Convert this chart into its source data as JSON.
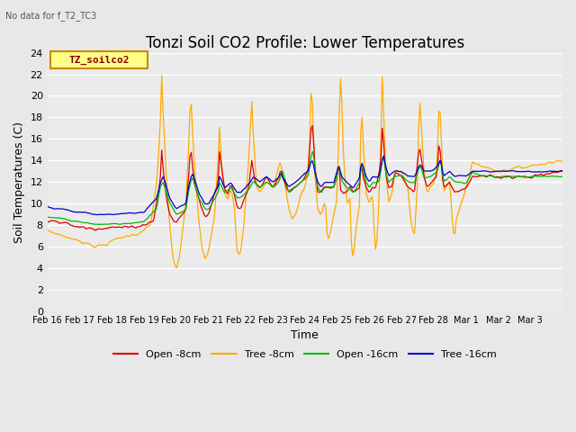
{
  "title": "Tonzi Soil CO2 Profile: Lower Temperatures",
  "subtitle": "No data for f_T2_TC3",
  "ylabel": "Soil Temperatures (C)",
  "xlabel": "Time",
  "legend_label": "TZ_soilco2",
  "ylim": [
    0,
    24
  ],
  "yticks": [
    0,
    2,
    4,
    6,
    8,
    10,
    12,
    14,
    16,
    18,
    20,
    22,
    24
  ],
  "xtick_labels": [
    "Feb 16",
    "Feb 17",
    "Feb 18",
    "Feb 19",
    "Feb 20",
    "Feb 21",
    "Feb 22",
    "Feb 23",
    "Feb 24",
    "Feb 25",
    "Feb 26",
    "Feb 27",
    "Feb 28",
    "Mar 1",
    "Mar 2",
    "Mar 3"
  ],
  "series_colors": [
    "#dd0000",
    "#ffaa00",
    "#00bb00",
    "#0000cc"
  ],
  "series_labels": [
    "Open -8cm",
    "Tree -8cm",
    "Open -16cm",
    "Tree -16cm"
  ],
  "background_color": "#e8e8e8",
  "plot_bg_color": "#ebebeb",
  "grid_color": "#ffffff",
  "title_fontsize": 12,
  "axis_fontsize": 9,
  "tick_fontsize": 8,
  "legend_box_color": "#ffff88",
  "legend_box_edge": "#cc8800",
  "legend_text_color": "#880000"
}
